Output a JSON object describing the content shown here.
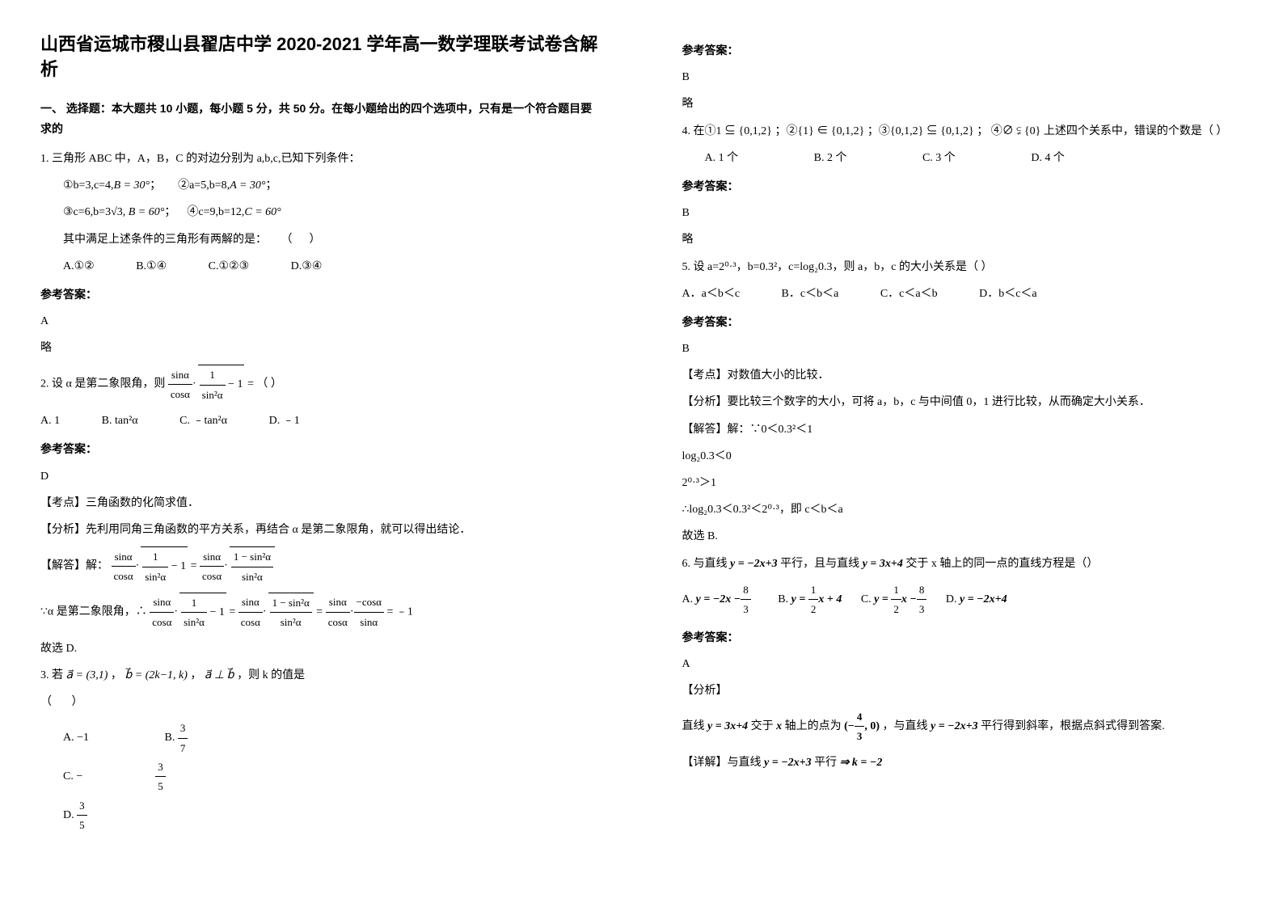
{
  "title": "山西省运城市稷山县翟店中学 2020-2021 学年高一数学理联考试卷含解析",
  "section1": "一、 选择题：本大题共 10 小题，每小题 5 分，共 50 分。在每小题给出的四个选项中，只有是一个符合题目要求的",
  "q1": {
    "stem": "1. 三角形 ABC 中，A，B，C 的对边分别为 a,b,c,已知下列条件：",
    "c1a": "①b=3,c=4,",
    "c1b": "B = 30°",
    "c2a": "②a=5,b=8,",
    "c2b": "A = 30°",
    "c3a": "③c=6,b=",
    "c3b": "3√3",
    "c3c": ", B = 60°",
    "c4a": "④c=9,b=12,",
    "c4b": "C = 60°",
    "ask": "其中满足上述条件的三角形有两解的是：",
    "optA": "A.①②",
    "optB": "B.①④",
    "optC": "C.①②③",
    "optD": "D.③④",
    "ansLabel": "参考答案：",
    "ans": "A",
    "note": "略"
  },
  "q2": {
    "stem_a": "2. 设 α 是第二象限角，则",
    "stem_b": " = （   ）",
    "optA": "A. 1",
    "optB": "B. tan²α",
    "optC": "C. ﹣tan²α",
    "optD": "D. ﹣1",
    "ansLabel": "参考答案：",
    "ans": "D",
    "kpLabel": "【考点】三角函数的化简求值．",
    "fx": "【分析】先利用同角三角函数的平方关系，再结合 α 是第二象限角，就可以得出结论．",
    "solLabel": "【解答】解：",
    "line2a": "∵α 是第二象限角，∴",
    "line2b": " = ﹣1",
    "end": "故选 D."
  },
  "q3": {
    "stem_a": "3. 若",
    "stem_b": "a⃗ = (3,1)",
    "stem_c": "，",
    "stem_d": "b⃗ = (2k−1, k)",
    "stem_e": "，",
    "stem_f": "a⃗ ⊥ b⃗",
    "stem_g": "，则 k 的值是",
    "optA": "A.  −1",
    "optB_num": "3",
    "optB_den": "7",
    "optC_pre": "−",
    "optC_num": "3",
    "optC_den": "5",
    "optD_num": "3",
    "optD_den": "5",
    "ansLabel": "参考答案：",
    "ans": "B",
    "note": "略"
  },
  "q4": {
    "stem_a": "4. 在①",
    "s1": "1 ⊆ {0,1,2}",
    "stem_b": "；②",
    "s2": "{1} ∈ {0,1,2}",
    "stem_c": "；③",
    "s3": "{0,1,2} ⊆ {0,1,2}",
    "stem_d": "；  ④",
    "s4": "∅ ⫋ {0}",
    "stem_e": " 上述四个关系中，错误的个数是（        ）",
    "optA": "A. 1 个",
    "optB": "B. 2 个",
    "optC": "C. 3 个",
    "optD": "D. 4 个",
    "ansLabel": "参考答案：",
    "ans": "B",
    "note": "略"
  },
  "q5": {
    "stem": "5. 设 a=2⁰·³，b=0.3²，c=log₂0.3，则 a，b，c 的大小关系是（    ）",
    "optA": "A．a＜b＜c",
    "optB": "B．c＜b＜a",
    "optC": "C．c＜a＜b",
    "optD": "D．b＜c＜a",
    "ansLabel": "参考答案：",
    "ans": "B",
    "kp": "【考点】对数值大小的比较．",
    "fx": "【分析】要比较三个数字的大小，可将 a，b，c 与中间值 0，1 进行比较，从而确定大小关系．",
    "sol1": "【解答】解：∵0＜0.3²＜1",
    "sol2": "log₂0.3＜0",
    "sol3": "2⁰·³＞1",
    "sol4": "∴log₂0.3＜0.3²＜2⁰·³，即 c＜b＜a",
    "sol5": "故选 B."
  },
  "q6": {
    "stem_a": "6. 与直线",
    "eq1": "y = −2x+3",
    "stem_b": "平行，且与直线",
    "eq2": "y = 3x+4",
    "stem_c": "交于 x 轴上的同一点的直线方程是（）",
    "optA_pre": "y = −2x −",
    "optA_num": "8",
    "optA_den": "3",
    "optB_pre": "y = ",
    "optB_num": "1",
    "optB_den": "2",
    "optB_post": "x + 4",
    "optC_pre": "y = ",
    "optC_num1": "1",
    "optC_den1": "2",
    "optC_mid": "x −",
    "optC_num2": "8",
    "optC_den2": "3",
    "optD": "y = −2x+4",
    "ansLabel": "参考答案：",
    "ans": "A",
    "fxLabel": "【分析】",
    "d_a": "直线",
    "d_eq1": "y = 3x+4",
    "d_b": "交于",
    "d_x": "x",
    "d_c": "轴上的点为",
    "d_pt_pre": "(−",
    "d_pt_num": "4",
    "d_pt_den": "3",
    "d_pt_post": ", 0)",
    "d_d": "，与直线",
    "d_eq2": "y = −2x+3",
    "d_e": "平行得到斜率，根据点斜式得到答案.",
    "det_a": "【详解】与直线",
    "det_eq": "y = −2x+3",
    "det_b": "平行",
    "det_imp": "⇒ k = −2"
  }
}
